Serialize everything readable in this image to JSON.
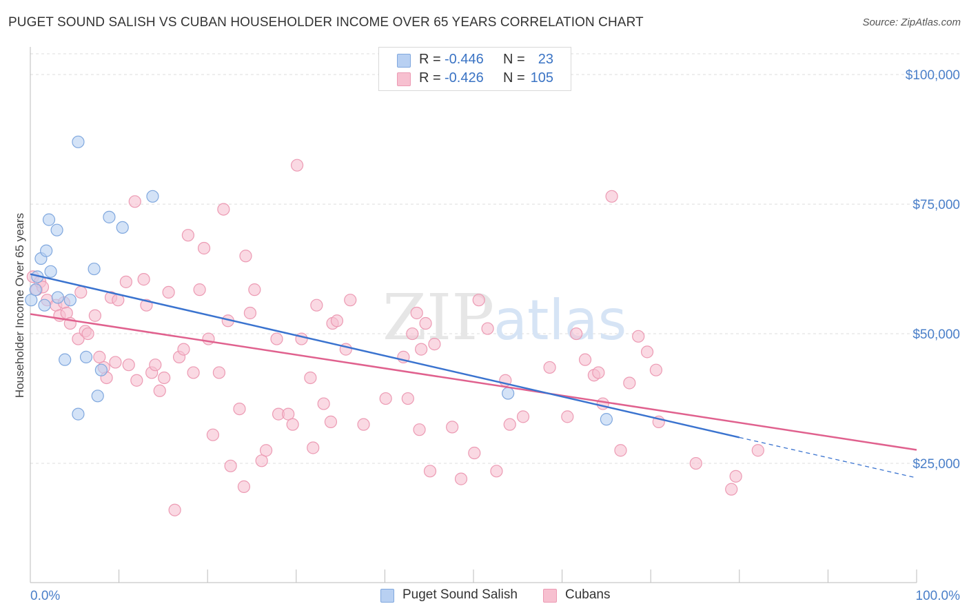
{
  "title": "PUGET SOUND SALISH VS CUBAN HOUSEHOLDER INCOME OVER 65 YEARS CORRELATION CHART",
  "source": "Source: ZipAtlas.com",
  "watermark": {
    "part1": "ZIP",
    "part2": "atlas"
  },
  "legend": {
    "rows": [
      {
        "r_label": "R =",
        "r_value": "-0.446",
        "n_label": "N =",
        "n_value": "23"
      },
      {
        "r_label": "R =",
        "r_value": "-0.426",
        "n_label": "N =",
        "n_value": "105"
      }
    ]
  },
  "bottom_legend": [
    "Puget Sound Salish",
    "Cubans"
  ],
  "colors": {
    "salish_fill": "#b8d0f2",
    "salish_stroke": "#7fa7de",
    "salish_line": "#3a73cf",
    "cuban_fill": "#f7c0d0",
    "cuban_stroke": "#ec9ab3",
    "cuban_line": "#e0618e",
    "tick_text": "#4a7fc9",
    "grid": "#dddddd"
  },
  "chart_data": {
    "type": "scatter",
    "title": "PUGET SOUND SALISH VS CUBAN HOUSEHOLDER INCOME OVER 65 YEARS CORRELATION CHART",
    "xlabel": "",
    "ylabel": "Householder Income Over 65 years",
    "xlim": [
      0,
      100
    ],
    "ylim": [
      2000,
      104000
    ],
    "x_tick_labels": [
      "0.0%",
      "100.0%"
    ],
    "y_ticks": [
      25000,
      50000,
      75000,
      100000
    ],
    "y_tick_labels": [
      "$25,000",
      "$50,000",
      "$75,000",
      "$100,000"
    ],
    "grid": true,
    "series": [
      {
        "name": "Puget Sound Salish",
        "points": [
          [
            0.1,
            56500
          ],
          [
            0.6,
            58500
          ],
          [
            0.8,
            61000
          ],
          [
            1.2,
            64500
          ],
          [
            1.6,
            55500
          ],
          [
            1.8,
            66000
          ],
          [
            2.1,
            72000
          ],
          [
            2.3,
            62000
          ],
          [
            3.0,
            70000
          ],
          [
            3.1,
            57000
          ],
          [
            3.9,
            45000
          ],
          [
            4.5,
            56500
          ],
          [
            5.4,
            87000
          ],
          [
            5.4,
            34500
          ],
          [
            6.3,
            45500
          ],
          [
            7.2,
            62500
          ],
          [
            7.6,
            38000
          ],
          [
            8.0,
            43000
          ],
          [
            8.9,
            72500
          ],
          [
            10.4,
            70500
          ],
          [
            13.8,
            76500
          ],
          [
            53.9,
            38500
          ],
          [
            65.0,
            33500
          ]
        ],
        "trend": {
          "x": [
            0,
            80
          ],
          "y": [
            61500,
            30000
          ],
          "dashed_to": [
            100,
            22200
          ]
        }
      },
      {
        "name": "Cubans",
        "points": [
          [
            0.3,
            61000
          ],
          [
            0.7,
            58500
          ],
          [
            1.1,
            60000
          ],
          [
            1.4,
            59000
          ],
          [
            1.9,
            56500
          ],
          [
            2.9,
            55500
          ],
          [
            3.3,
            53500
          ],
          [
            3.8,
            56000
          ],
          [
            4.1,
            54000
          ],
          [
            4.5,
            52000
          ],
          [
            5.4,
            49000
          ],
          [
            5.7,
            58000
          ],
          [
            6.2,
            50500
          ],
          [
            6.5,
            50000
          ],
          [
            7.3,
            53500
          ],
          [
            7.8,
            45500
          ],
          [
            8.3,
            43500
          ],
          [
            8.6,
            41500
          ],
          [
            9.1,
            57000
          ],
          [
            9.6,
            44500
          ],
          [
            9.9,
            56500
          ],
          [
            10.8,
            60000
          ],
          [
            11.1,
            44000
          ],
          [
            11.8,
            75500
          ],
          [
            12.0,
            41000
          ],
          [
            12.8,
            60500
          ],
          [
            13.1,
            55500
          ],
          [
            13.7,
            42500
          ],
          [
            14.1,
            44000
          ],
          [
            14.6,
            39000
          ],
          [
            15.1,
            41500
          ],
          [
            15.6,
            58000
          ],
          [
            16.3,
            16000
          ],
          [
            16.8,
            45500
          ],
          [
            17.3,
            47000
          ],
          [
            17.8,
            69000
          ],
          [
            18.4,
            42500
          ],
          [
            19.1,
            58500
          ],
          [
            19.6,
            66500
          ],
          [
            20.1,
            49000
          ],
          [
            20.6,
            30500
          ],
          [
            21.3,
            42500
          ],
          [
            21.8,
            74000
          ],
          [
            22.3,
            52500
          ],
          [
            22.6,
            24500
          ],
          [
            23.6,
            35500
          ],
          [
            24.1,
            20500
          ],
          [
            24.3,
            65000
          ],
          [
            24.8,
            54000
          ],
          [
            25.3,
            58500
          ],
          [
            26.1,
            25500
          ],
          [
            26.6,
            27500
          ],
          [
            27.8,
            49000
          ],
          [
            28.0,
            34500
          ],
          [
            29.1,
            34500
          ],
          [
            29.6,
            32500
          ],
          [
            30.1,
            82500
          ],
          [
            30.6,
            49000
          ],
          [
            31.6,
            41500
          ],
          [
            31.9,
            28000
          ],
          [
            32.3,
            55500
          ],
          [
            33.1,
            36500
          ],
          [
            33.9,
            33000
          ],
          [
            34.1,
            52000
          ],
          [
            34.6,
            52500
          ],
          [
            35.6,
            47000
          ],
          [
            36.1,
            56500
          ],
          [
            37.6,
            32500
          ],
          [
            40.1,
            37500
          ],
          [
            42.1,
            45500
          ],
          [
            42.6,
            37500
          ],
          [
            43.1,
            50000
          ],
          [
            43.6,
            54000
          ],
          [
            43.9,
            31500
          ],
          [
            44.1,
            47000
          ],
          [
            44.6,
            52000
          ],
          [
            45.1,
            23500
          ],
          [
            45.6,
            48000
          ],
          [
            47.6,
            32000
          ],
          [
            48.6,
            22000
          ],
          [
            50.1,
            27000
          ],
          [
            50.6,
            56500
          ],
          [
            51.6,
            51000
          ],
          [
            52.6,
            23500
          ],
          [
            53.6,
            41000
          ],
          [
            54.1,
            32500
          ],
          [
            55.6,
            34000
          ],
          [
            58.6,
            43500
          ],
          [
            60.6,
            34000
          ],
          [
            61.6,
            50000
          ],
          [
            62.6,
            45000
          ],
          [
            63.6,
            42000
          ],
          [
            64.1,
            42500
          ],
          [
            64.6,
            36500
          ],
          [
            66.6,
            27500
          ],
          [
            67.6,
            40500
          ],
          [
            68.6,
            49500
          ],
          [
            69.6,
            46500
          ],
          [
            70.6,
            43000
          ],
          [
            70.9,
            33000
          ],
          [
            75.1,
            25000
          ],
          [
            79.1,
            20000
          ],
          [
            79.6,
            22500
          ],
          [
            82.1,
            27500
          ],
          [
            65.6,
            76500
          ]
        ],
        "trend": {
          "x": [
            0,
            100
          ],
          "y": [
            53800,
            27600
          ]
        }
      }
    ]
  }
}
